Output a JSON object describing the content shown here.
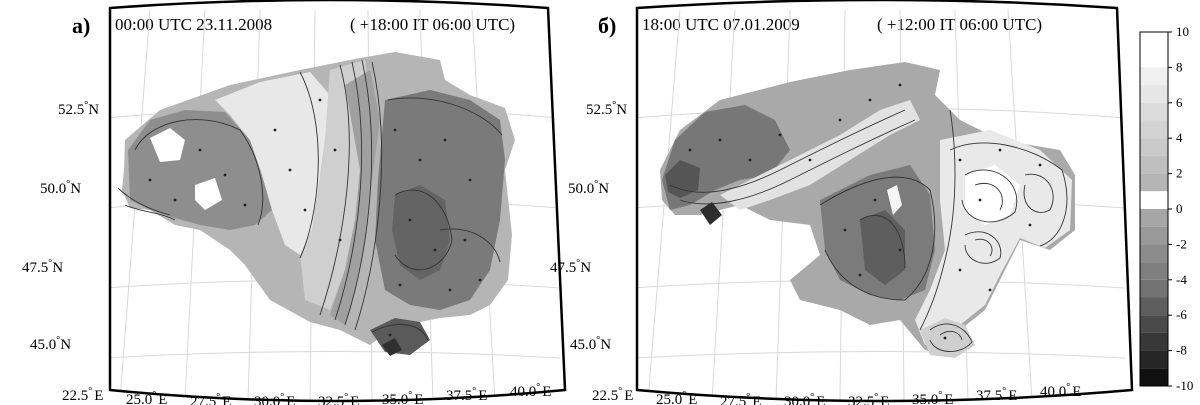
{
  "panels": [
    {
      "letter": "а)",
      "time_label": "00:00 UTC 23.11.2008",
      "forecast_label": "( +18:00 IT 06:00 UTC)"
    },
    {
      "letter": "б)",
      "time_label": "18:00 UTC 07.01.2009",
      "forecast_label": "( +12:00 IT 06:00 UTC)"
    }
  ],
  "lat_labels": [
    "52.5",
    "50.0",
    "47.5",
    "45.0"
  ],
  "lat_suffix": "N",
  "lon_labels": [
    "22.5",
    "25.0",
    "27.5",
    "30.0",
    "32.5",
    "35.0",
    "37.5",
    "40.0"
  ],
  "lon_suffix": "E",
  "degree_symbol": "°",
  "colorbar": {
    "min": -10,
    "max": 10,
    "tick_labels": [
      "10",
      "8",
      "6",
      "4",
      "2",
      "0",
      "-2",
      "-4",
      "-6",
      "-8",
      "-10"
    ],
    "levels": [
      {
        "range": [
          8,
          10
        ],
        "color": "#ffffff"
      },
      {
        "range": [
          7,
          8
        ],
        "color": "#f0f0f0"
      },
      {
        "range": [
          6,
          7
        ],
        "color": "#e6e6e6"
      },
      {
        "range": [
          5,
          6
        ],
        "color": "#dcdcdc"
      },
      {
        "range": [
          4,
          5
        ],
        "color": "#d3d3d3"
      },
      {
        "range": [
          3,
          4
        ],
        "color": "#c9c9c9"
      },
      {
        "range": [
          2,
          3
        ],
        "color": "#bfbfbf"
      },
      {
        "range": [
          1,
          2
        ],
        "color": "#b5b5b5"
      },
      {
        "range": [
          0,
          1
        ],
        "color": "#ffffff"
      },
      {
        "range": [
          -1,
          0
        ],
        "color": "#a6a6a6"
      },
      {
        "range": [
          -2,
          -1
        ],
        "color": "#999999"
      },
      {
        "range": [
          -3,
          -2
        ],
        "color": "#8c8c8c"
      },
      {
        "range": [
          -4,
          -3
        ],
        "color": "#7f7f7f"
      },
      {
        "range": [
          -5,
          -4
        ],
        "color": "#737373"
      },
      {
        "range": [
          -6,
          -5
        ],
        "color": "#5e5e5e"
      },
      {
        "range": [
          -7,
          -6
        ],
        "color": "#4a4a4a"
      },
      {
        "range": [
          -8,
          -7
        ],
        "color": "#383838"
      },
      {
        "range": [
          -9,
          -8
        ],
        "color": "#262626"
      },
      {
        "range": [
          -10,
          -9
        ],
        "color": "#111111"
      }
    ]
  }
}
